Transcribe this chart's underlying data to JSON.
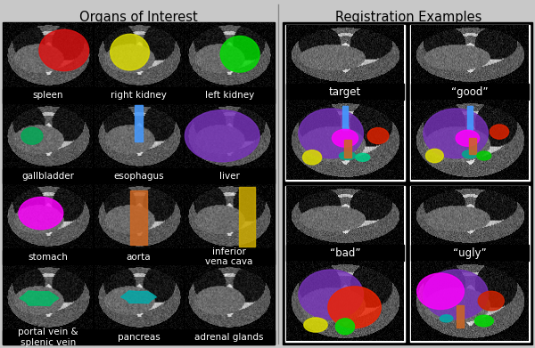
{
  "title_left": "Organs of Interest",
  "title_right": "Registration Examples",
  "left_labels": [
    [
      "spleen",
      "right kidney",
      "left kidney"
    ],
    [
      "gallbladder",
      "esophagus",
      "liver"
    ],
    [
      "stomach",
      "aorta",
      "inferior\nvena cava"
    ],
    [
      "portal vein &\nsplenic vein",
      "pancreas",
      "adrenal glands"
    ]
  ],
  "right_labels": [
    [
      "target",
      "“good”"
    ],
    [
      "“bad”",
      "“ugly”"
    ]
  ],
  "bg_color": "#000000",
  "fig_bg": "#c8c8c8",
  "text_color": "#ffffff",
  "title_color": "#000000",
  "label_fontsize": 7.5,
  "title_fontsize": 10.5
}
